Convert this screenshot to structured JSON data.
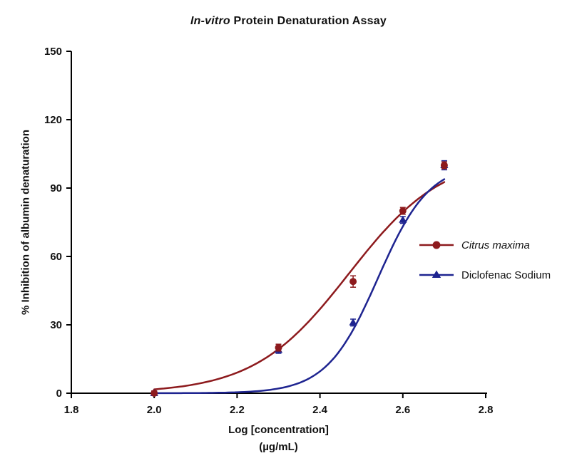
{
  "chart_data": {
    "type": "line",
    "title_italic": "In-vitro",
    "title_rest": " Protein Denaturation Assay",
    "xlabel": "Log [concentration]",
    "xlabel_units": "(µg/mL)",
    "ylabel": "% Inhibition of albumin denaturation",
    "xlim": [
      1.8,
      2.8
    ],
    "ylim": [
      0,
      150
    ],
    "xticks": [
      "1.8",
      "2.0",
      "2.2",
      "2.4",
      "2.6",
      "2.8"
    ],
    "yticks": [
      "0",
      "30",
      "60",
      "90",
      "120",
      "150"
    ],
    "grid": false,
    "axis_color": "#000000",
    "legend_position": "right-inside",
    "series": [
      {
        "name": "Citrus maxima",
        "name_italic": true,
        "color": "#8d1a1d",
        "marker": "circle",
        "points": [
          {
            "x": 2.0,
            "y": 0,
            "err": 1
          },
          {
            "x": 2.3,
            "y": 20,
            "err": 1.5
          },
          {
            "x": 2.48,
            "y": 49,
            "err": 2.5
          },
          {
            "x": 2.6,
            "y": 80,
            "err": 1.5
          },
          {
            "x": 2.7,
            "y": 100,
            "err": 1.5
          }
        ],
        "fit": {
          "bottom": 0,
          "top": 105,
          "logec50": 2.47,
          "hill": 3.8,
          "xstart": 2.0,
          "xend": 2.7
        }
      },
      {
        "name": "Diclofenac Sodium",
        "name_italic": false,
        "color": "#1e2490",
        "marker": "triangle",
        "points": [
          {
            "x": 2.0,
            "y": 0,
            "err": 1
          },
          {
            "x": 2.3,
            "y": 19,
            "err": 1.5
          },
          {
            "x": 2.48,
            "y": 31,
            "err": 1.5
          },
          {
            "x": 2.6,
            "y": 76,
            "err": 1.5
          },
          {
            "x": 2.7,
            "y": 100,
            "err": 2
          }
        ],
        "fit": {
          "bottom": 0,
          "top": 101,
          "logec50": 2.54,
          "hill": 7.0,
          "xstart": 2.0,
          "xend": 2.7
        }
      }
    ]
  }
}
